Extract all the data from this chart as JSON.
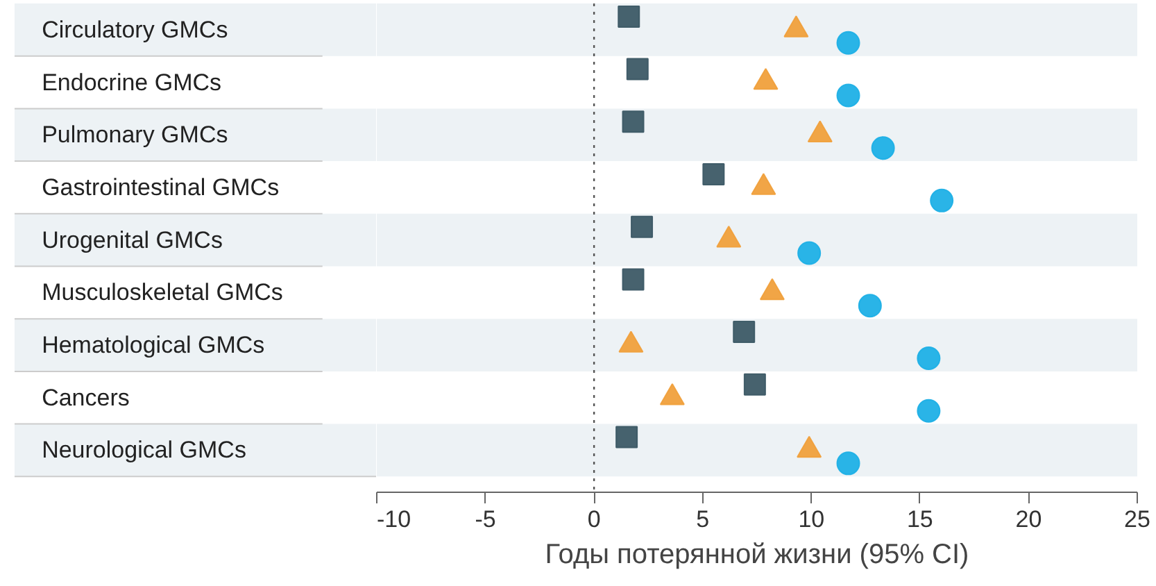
{
  "chart_data": {
    "type": "scatter",
    "orientation": "horizontal",
    "xlabel": "Годы потерянной жизни (95% CI)",
    "categories": [
      "Circulatory GMCs",
      "Endocrine GMCs",
      "Pulmonary GMCs",
      "Gastrointestinal GMCs",
      "Urogenital GMCs",
      "Musculoskeletal GMCs",
      "Hematological GMCs",
      "Cancers",
      "Neurological GMCs"
    ],
    "series": [
      {
        "color": "#3d5a66",
        "marker": "square",
        "values": [
          1.6,
          2.0,
          1.8,
          5.5,
          2.2,
          1.8,
          6.9,
          7.4,
          1.5
        ]
      },
      {
        "color": "#f0a03c",
        "marker": "triangle",
        "values": [
          9.3,
          7.9,
          10.4,
          7.8,
          6.2,
          8.2,
          1.7,
          3.6,
          9.9
        ]
      },
      {
        "color": "#1fb0e6",
        "marker": "circle",
        "values": [
          11.7,
          11.7,
          13.3,
          16.0,
          9.9,
          12.7,
          15.4,
          15.4,
          11.7
        ]
      }
    ],
    "xlim": [
      -10,
      25
    ],
    "xticks": [
      -10,
      -5,
      0,
      5,
      10,
      15,
      20,
      25
    ],
    "ref_lines": [
      {
        "axis": "x",
        "value": 0,
        "line_style": "dotted",
        "color": "#555555"
      }
    ],
    "grid": false
  }
}
